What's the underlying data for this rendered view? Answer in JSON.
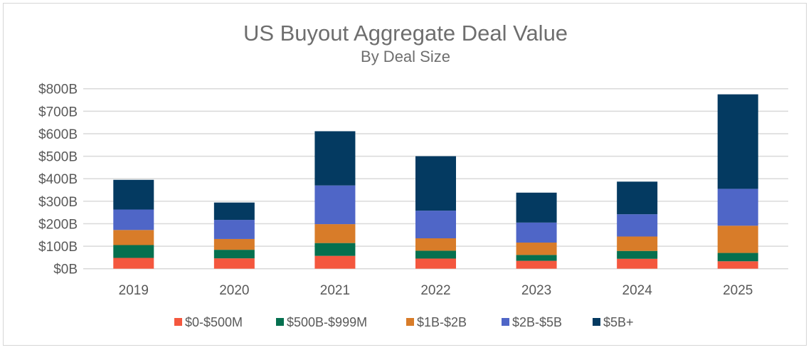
{
  "chart_data": {
    "type": "bar",
    "stacked": true,
    "title": "US Buyout Aggregate Deal Value",
    "subtitle": "By Deal Size",
    "xlabel": "",
    "ylabel": "",
    "categories": [
      "2019",
      "2020",
      "2021",
      "2022",
      "2023",
      "2024",
      "2025"
    ],
    "ylim": [
      0,
      800
    ],
    "yticks": [
      0,
      100,
      200,
      300,
      400,
      500,
      600,
      700,
      800
    ],
    "ytick_labels": [
      "$0B",
      "$100B",
      "$200B",
      "$300B",
      "$400B",
      "$500B",
      "$600B",
      "$700B",
      "$800B"
    ],
    "grid": true,
    "legend_position": "bottom",
    "series": [
      {
        "name": "$0-$500M",
        "color": "#f4573e",
        "values": [
          48,
          46,
          57,
          45,
          35,
          44,
          33
        ]
      },
      {
        "name": "$500B-$999M",
        "color": "#05704f",
        "values": [
          57,
          38,
          57,
          35,
          26,
          35,
          37
        ]
      },
      {
        "name": "$1B-$2B",
        "color": "#d87c29",
        "values": [
          67,
          48,
          84,
          55,
          55,
          64,
          121
        ]
      },
      {
        "name": "$2B-$5B",
        "color": "#4f66c7",
        "values": [
          91,
          85,
          172,
          123,
          89,
          99,
          164
        ]
      },
      {
        "name": "$5B+",
        "color": "#043a61",
        "values": [
          132,
          77,
          241,
          242,
          133,
          145,
          420
        ]
      }
    ]
  }
}
